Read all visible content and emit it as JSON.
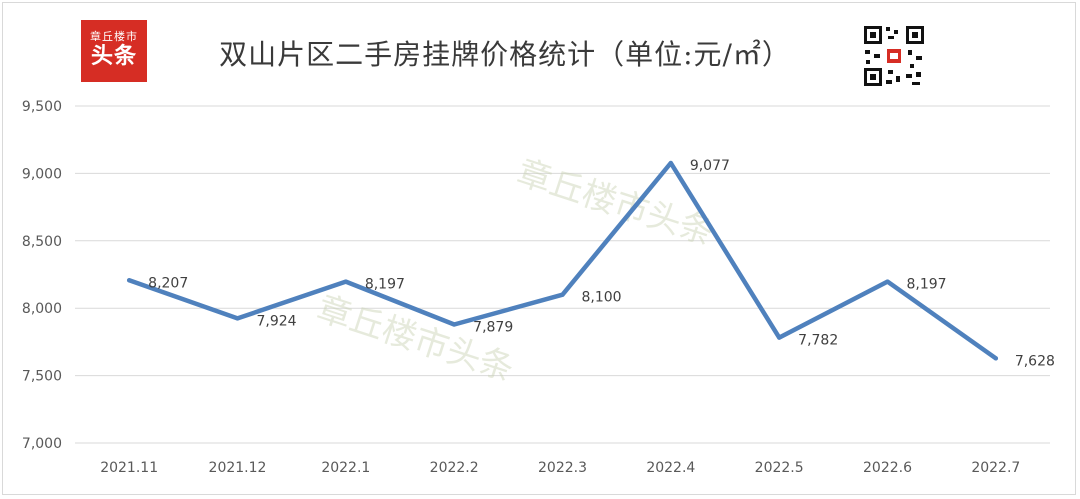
{
  "header": {
    "title": "双山片区二手房挂牌价格统计（单位:元/㎡）",
    "logo_top": "章丘楼市",
    "logo_bottom": "头条"
  },
  "watermark": "章丘楼市头条",
  "colors": {
    "line": "#4f81bd",
    "grid": "#d9d9d9",
    "logo": "#d62d24"
  },
  "chart_data": {
    "type": "line",
    "title": "双山片区二手房挂牌价格统计（单位:元/㎡）",
    "categories": [
      "2021.11",
      "2021.12",
      "2022.1",
      "2022.2",
      "2022.3",
      "2022.4",
      "2022.5",
      "2022.6",
      "2022.7"
    ],
    "values": [
      8207,
      7924,
      8197,
      7879,
      8100,
      9077,
      7782,
      8197,
      7628
    ],
    "value_labels": [
      "8,207",
      "7,924",
      "8,197",
      "7,879",
      "8,100",
      "9,077",
      "7,782",
      "8,197",
      "7,628"
    ],
    "yticks": [
      "7,000",
      "7,500",
      "8,000",
      "8,500",
      "9,000",
      "9,500"
    ],
    "ylim": [
      7000,
      9500
    ],
    "grid": true,
    "legend": "none"
  }
}
